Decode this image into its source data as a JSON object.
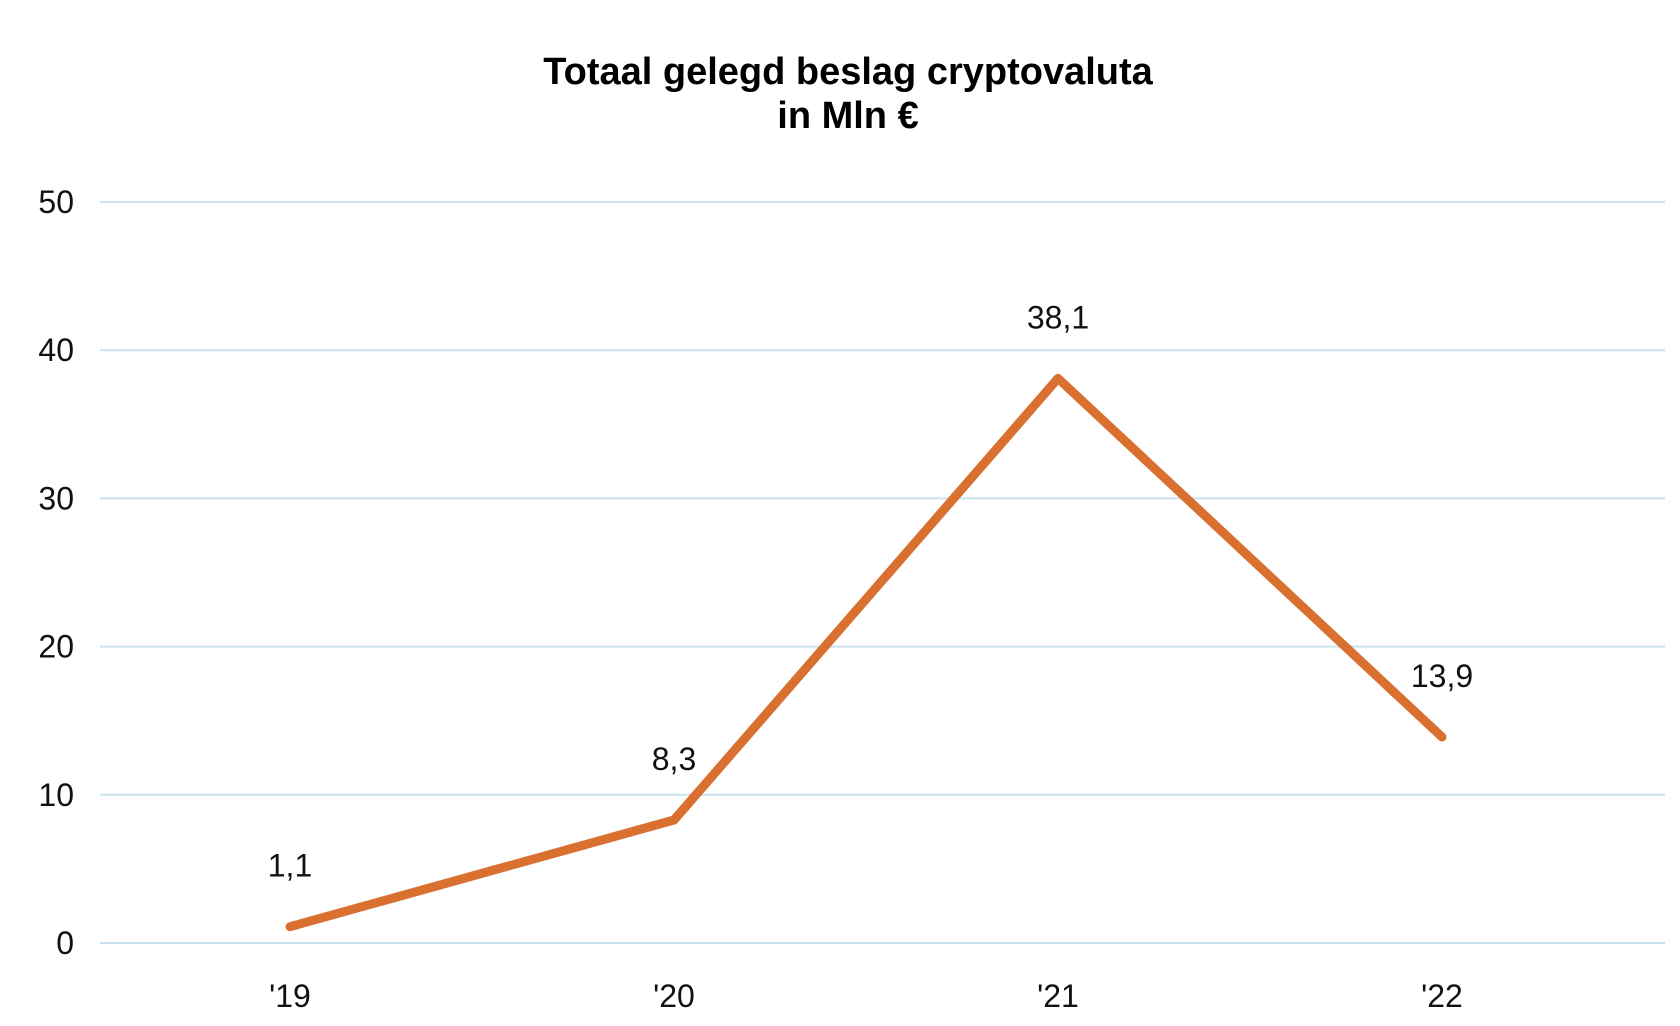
{
  "chart_data": {
    "type": "line",
    "title": "Totaal gelegd beslag cryptovaluta",
    "subtitle": "in Mln €",
    "categories": [
      "'19",
      "'20",
      "'21",
      "'22"
    ],
    "series": [
      {
        "values": [
          1.1,
          8.3,
          38.1,
          13.9
        ],
        "labels": [
          "1,1",
          "8,3",
          "38,1",
          "13,9"
        ]
      }
    ],
    "y_ticks": [
      0,
      10,
      20,
      30,
      40,
      50
    ],
    "ylim": [
      0,
      50
    ],
    "xlabel": "",
    "ylabel": "",
    "grid": true,
    "legend": "none",
    "line_color": "#d9702f",
    "grid_color": "#c9e3f0"
  }
}
